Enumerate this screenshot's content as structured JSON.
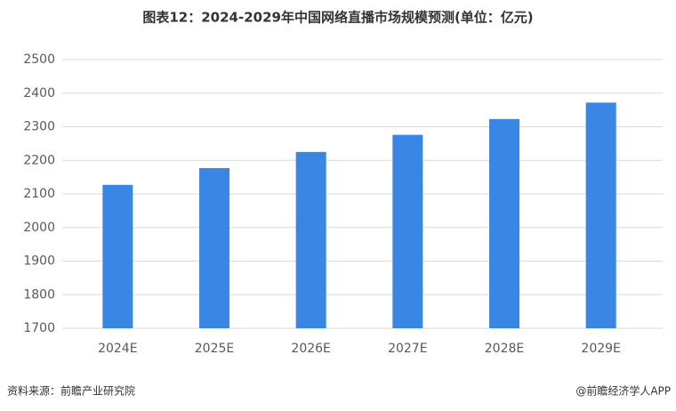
{
  "chart_data": {
    "type": "bar",
    "title": "图表12：2024-2029年中国网络直播市场规模预测(单位：亿元)",
    "categories": [
      "2024E",
      "2025E",
      "2026E",
      "2027E",
      "2028E",
      "2029E"
    ],
    "values": [
      2127,
      2177,
      2225,
      2276,
      2323,
      2372
    ],
    "color": "#3a86e5",
    "ylim": [
      1700,
      2500
    ],
    "yticks": [
      1700,
      1800,
      1900,
      2000,
      2100,
      2200,
      2300,
      2400,
      2500
    ],
    "grid": true,
    "source": "资料来源：前瞻产业研究院",
    "credit": "@前瞻经济学人APP"
  }
}
